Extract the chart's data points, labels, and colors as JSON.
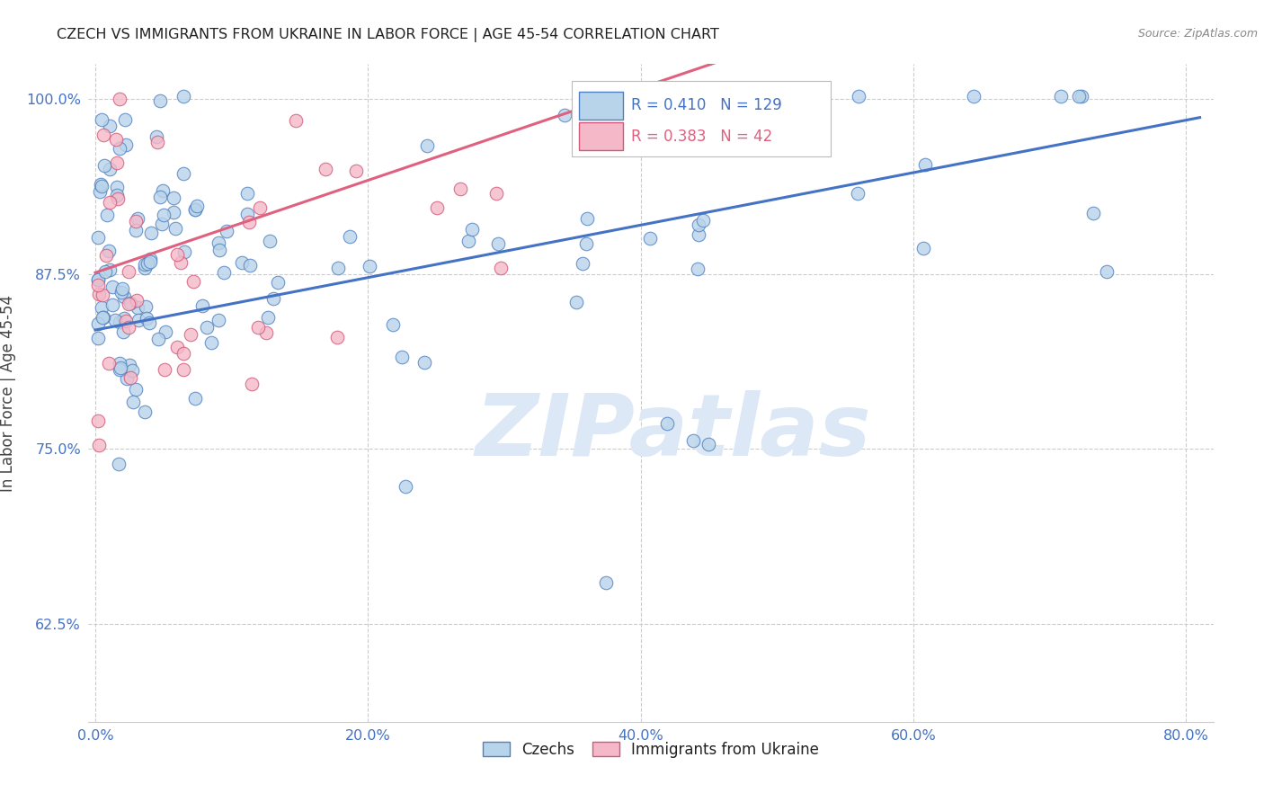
{
  "title": "CZECH VS IMMIGRANTS FROM UKRAINE IN LABOR FORCE | AGE 45-54 CORRELATION CHART",
  "source": "Source: ZipAtlas.com",
  "ylabel": "In Labor Force | Age 45-54",
  "x_ticks": [
    "0.0%",
    "20.0%",
    "40.0%",
    "60.0%",
    "80.0%"
  ],
  "x_tick_vals": [
    0.0,
    0.2,
    0.4,
    0.6,
    0.8
  ],
  "y_ticks": [
    "62.5%",
    "75.0%",
    "87.5%",
    "100.0%"
  ],
  "y_tick_vals": [
    0.625,
    0.75,
    0.875,
    1.0
  ],
  "xlim": [
    -0.005,
    0.82
  ],
  "ylim": [
    0.555,
    1.025
  ],
  "r_czech": 0.41,
  "n_czech": 129,
  "r_ukraine": 0.383,
  "n_ukraine": 42,
  "color_czech_face": "#b8d4ea",
  "color_ukraine_face": "#f4b8c8",
  "color_czech_edge": "#5080c0",
  "color_ukraine_edge": "#d05878",
  "color_czech_line": "#4472c4",
  "color_ukraine_line": "#e06080",
  "watermark": "ZIPatlas",
  "watermark_color": "#dce8f5",
  "title_color": "#222222",
  "source_color": "#888888",
  "axis_label_color": "#444444",
  "tick_color": "#4472c4",
  "grid_color": "#cccccc",
  "background_color": "#ffffff",
  "legend_label_czech": "Czechs",
  "legend_label_ukraine": "Immigrants from Ukraine"
}
